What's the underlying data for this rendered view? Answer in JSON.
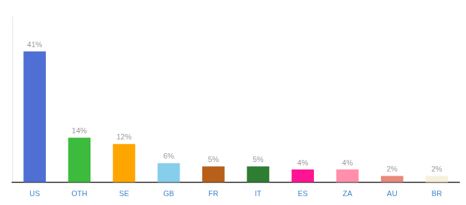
{
  "chart_data": {
    "type": "bar",
    "categories": [
      "US",
      "OTH",
      "SE",
      "GB",
      "FR",
      "IT",
      "ES",
      "ZA",
      "AU",
      "BR"
    ],
    "values": [
      41,
      14,
      12,
      6,
      5,
      5,
      4,
      4,
      2,
      2
    ],
    "value_labels": [
      "41%",
      "14%",
      "12%",
      "6%",
      "5%",
      "5%",
      "4%",
      "4%",
      "2%",
      "2%"
    ],
    "colors": [
      "#4F6FD4",
      "#3DBB3D",
      "#FFA500",
      "#87CEEB",
      "#B8601A",
      "#2E7D32",
      "#FF1493",
      "#FF8FAB",
      "#E8897A",
      "#F5F0DC"
    ],
    "ylim": [
      0,
      52
    ],
    "grid": false,
    "data_labels": true,
    "tick_labels": "x"
  }
}
